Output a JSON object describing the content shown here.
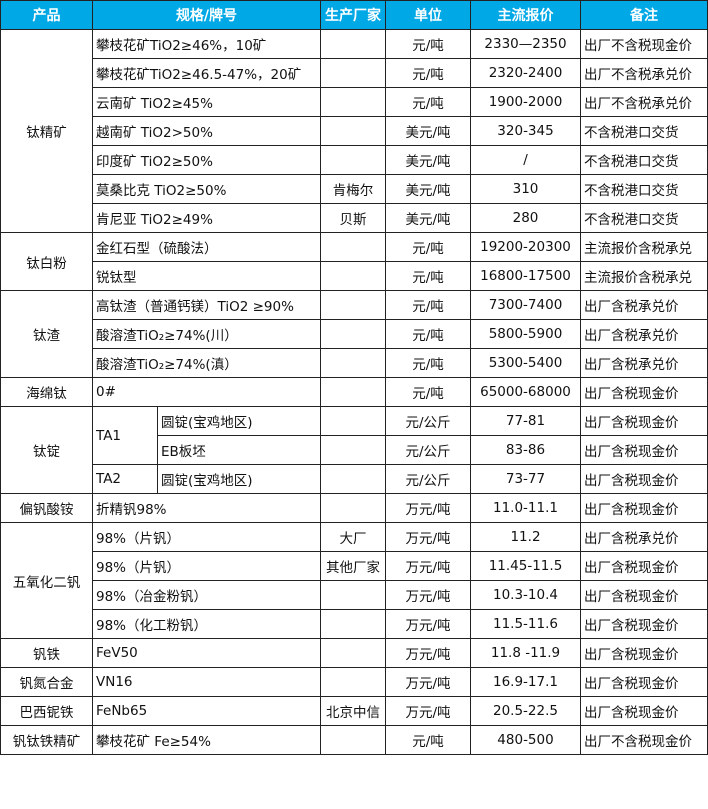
{
  "header": [
    "产品",
    "规格/牌号",
    "生产厂家",
    "单位",
    "主流报价",
    "备注"
  ],
  "colors": {
    "header_bg": "#00a8e6",
    "header_text": "#ffffff",
    "border": "#222222"
  },
  "groups": [
    {
      "product": "钛精矿",
      "rows": [
        {
          "spec": "攀枝花矿TiO2≥46%，10矿",
          "maker": "",
          "unit": "元/吨",
          "price": "2330—2350",
          "note": "出厂不含税现金价"
        },
        {
          "spec": "攀枝花矿TiO2≥46.5-47%，20矿",
          "maker": "",
          "unit": "元/吨",
          "price": "2320-2400",
          "note": "出厂不含税承兑价"
        },
        {
          "spec": "云南矿 TiO2≥45%",
          "maker": "",
          "unit": "元/吨",
          "price": "1900-2000",
          "note": "出厂不含税承兑价"
        },
        {
          "spec": "越南矿 TiO2>50%",
          "maker": "",
          "unit": "美元/吨",
          "price": "320-345",
          "note": "不含税港口交货"
        },
        {
          "spec": "印度矿 TiO2≥50%",
          "maker": "",
          "unit": "美元/吨",
          "price": "/",
          "note": "不含税港口交货"
        },
        {
          "spec": "莫桑比克 TiO2≥50%",
          "maker": "肯梅尔",
          "unit": "美元/吨",
          "price": "310",
          "note": "不含税港口交货"
        },
        {
          "spec": "肯尼亚 TiO2≥49%",
          "maker": "贝斯",
          "unit": "美元/吨",
          "price": "280",
          "note": "不含税港口交货"
        }
      ]
    },
    {
      "product": "钛白粉",
      "rows": [
        {
          "spec": "金红石型（硫酸法）",
          "maker": "",
          "unit": "元/吨",
          "price": "19200-20300",
          "note": "主流报价含税承兑"
        },
        {
          "spec": "锐钛型",
          "maker": "",
          "unit": "元/吨",
          "price": "16800-17500",
          "note": "主流报价含税承兑"
        }
      ]
    },
    {
      "product": "钛渣",
      "rows": [
        {
          "spec": "高钛渣（普通钙镁）TiO2 ≥90%",
          "maker": "",
          "unit": "元/吨",
          "price": "7300-7400",
          "note": "出厂含税承兑价"
        },
        {
          "spec": "酸溶渣TiO₂≥74%(川）",
          "maker": "",
          "unit": "元/吨",
          "price": "5800-5900",
          "note": "出厂含税承兑价"
        },
        {
          "spec": "酸溶渣TiO₂≥74%(滇）",
          "maker": "",
          "unit": "元/吨",
          "price": "5300-5400",
          "note": "出厂含税承兑价"
        }
      ]
    },
    {
      "product": "海绵钛",
      "rows": [
        {
          "spec": "0#",
          "maker": "",
          "unit": "元/吨",
          "price": "65000-68000",
          "note": "出厂含税现金价"
        }
      ]
    },
    {
      "product": "钛锭",
      "rows": [
        {
          "grade": "TA1",
          "spec": "圆锭(宝鸡地区)",
          "maker": "",
          "unit": "元/公斤",
          "price": "77-81",
          "note": "出厂含税现金价"
        },
        {
          "grade": "TA1",
          "spec": "EB板坯",
          "maker": "",
          "unit": "元/公斤",
          "price": "83-86",
          "note": "出厂含税现金价"
        },
        {
          "grade": "TA2",
          "spec": "圆锭(宝鸡地区)",
          "maker": "",
          "unit": "元/公斤",
          "price": "73-77",
          "note": "出厂含税现金价"
        }
      ]
    },
    {
      "product": "偏钒酸铵",
      "rows": [
        {
          "spec": "折精钒98%",
          "maker": "",
          "unit": "万元/吨",
          "price": "11.0-11.1",
          "note": "出厂含税现金价"
        }
      ]
    },
    {
      "product": "五氧化二钒",
      "rows": [
        {
          "spec": "98%（片钒）",
          "maker": "大厂",
          "unit": "万元/吨",
          "price": "11.2",
          "note": "出厂含税承兑价"
        },
        {
          "spec": "98%（片钒）",
          "maker": "其他厂家",
          "unit": "万元/吨",
          "price": "11.45-11.5",
          "note": "出厂含税现金价"
        },
        {
          "spec": "98%（冶金粉钒）",
          "maker": "",
          "unit": "万元/吨",
          "price": "10.3-10.4",
          "note": "出厂含税现金价"
        },
        {
          "spec": "98%（化工粉钒）",
          "maker": "",
          "unit": "万元/吨",
          "price": "11.5-11.6",
          "note": "出厂含税现金价"
        }
      ]
    },
    {
      "product": "钒铁",
      "rows": [
        {
          "spec": "FeV50",
          "maker": "",
          "unit": "万元/吨",
          "price": "11.8 -11.9",
          "note": "出厂含税现金价"
        }
      ]
    },
    {
      "product": "钒氮合金",
      "rows": [
        {
          "spec": "VN16",
          "maker": "",
          "unit": "万元/吨",
          "price": "16.9-17.1",
          "note": "出厂含税现金价"
        }
      ]
    },
    {
      "product": "巴西铌铁",
      "rows": [
        {
          "spec": "FeNb65",
          "maker": "北京中信",
          "unit": "万元/吨",
          "price": "20.5-22.5",
          "note": "出厂含税现金价"
        }
      ]
    },
    {
      "product": "钒钛铁精矿",
      "rows": [
        {
          "spec": "攀枝花矿 Fe≥54%",
          "maker": "",
          "unit": "元/吨",
          "price": "480-500",
          "note": "出厂不含税现金价"
        }
      ]
    }
  ]
}
